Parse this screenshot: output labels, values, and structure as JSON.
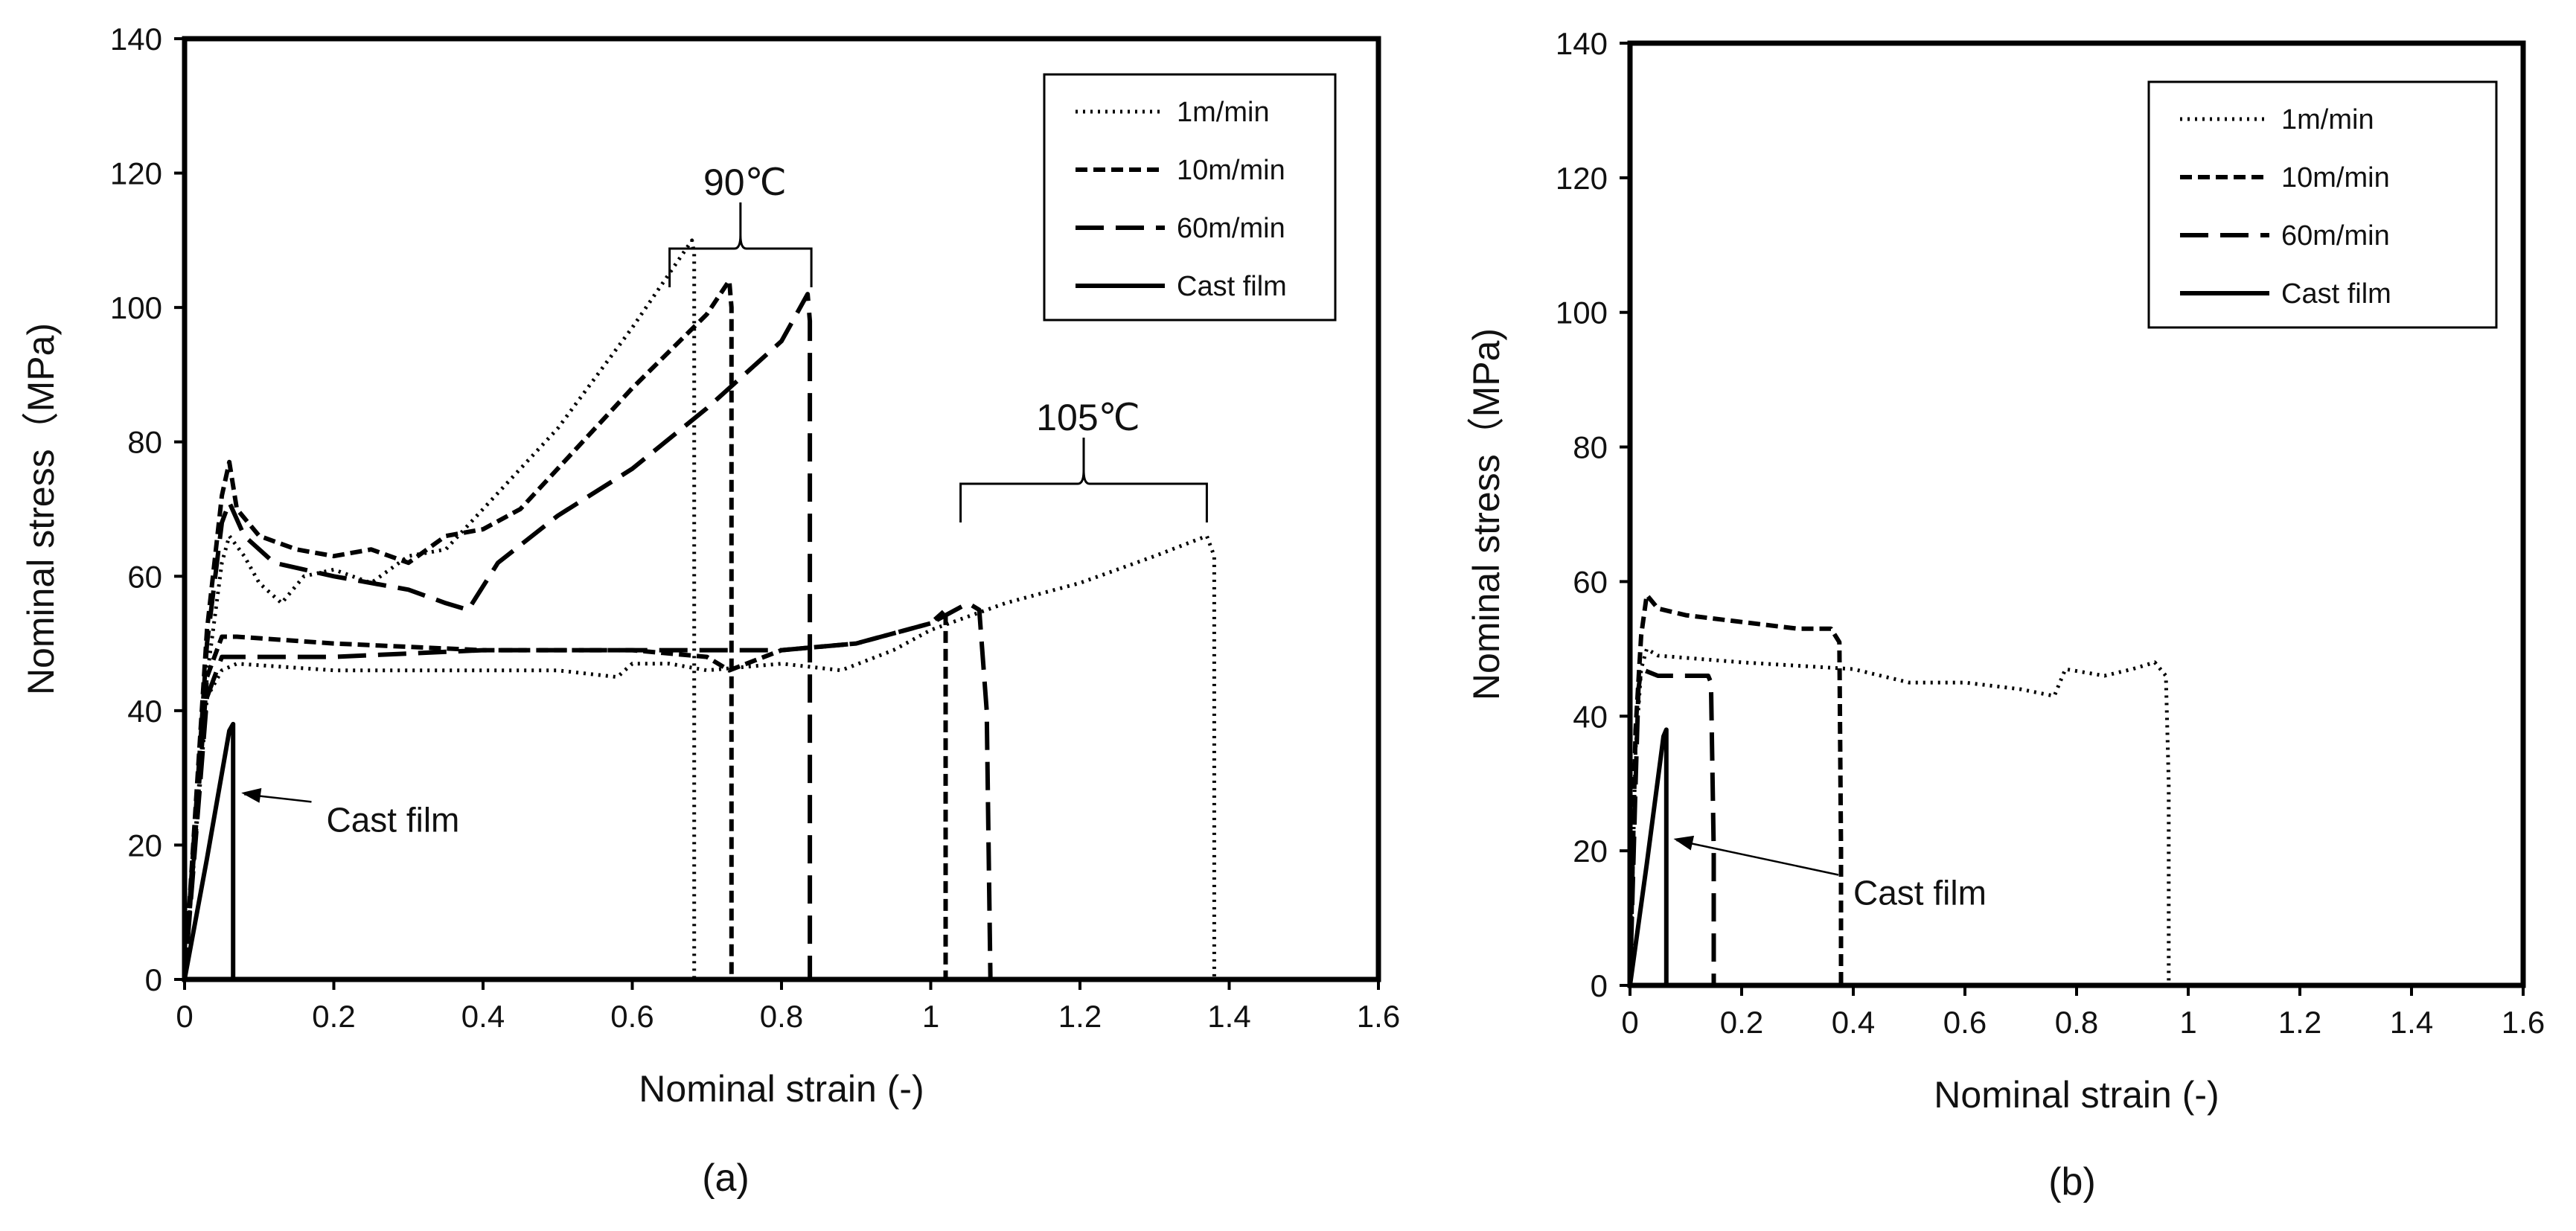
{
  "figure": {
    "panel_a_label": "(a)",
    "panel_b_label": "(b)"
  },
  "chart_data": [
    {
      "type": "line",
      "panel": "(a)",
      "xlabel": "Nominal strain (-)",
      "ylabel": "Nominal stress（MPa)",
      "xlim": [
        0,
        1.6
      ],
      "ylim": [
        0,
        140
      ],
      "xticks": [
        "0",
        "0.2",
        "0.4",
        "0.6",
        "0.8",
        "1",
        "1.2",
        "1.4",
        "1.6"
      ],
      "yticks": [
        "0",
        "20",
        "40",
        "60",
        "80",
        "100",
        "120",
        "140"
      ],
      "legend": {
        "placement": "top-right",
        "entries": [
          {
            "label": "1m/min",
            "style": "dotted"
          },
          {
            "label": "10m/min",
            "style": "short-dash"
          },
          {
            "label": "60m/min",
            "style": "long-dash"
          },
          {
            "label": "Cast film",
            "style": "solid"
          }
        ]
      },
      "annotations": [
        {
          "text": "90℃",
          "bracket_x": [
            0.65,
            0.84
          ],
          "bracket_y": 103
        },
        {
          "text": "105℃",
          "bracket_x": [
            1.04,
            1.37
          ],
          "bracket_y": 68
        },
        {
          "text": "Cast film",
          "arrow_to": [
            0.07,
            28
          ],
          "text_at": [
            0.19,
            22
          ]
        }
      ],
      "series": [
        {
          "name": "1m/min 90℃",
          "style": "dotted",
          "x": [
            0,
            0.03,
            0.05,
            0.06,
            0.08,
            0.1,
            0.13,
            0.16,
            0.2,
            0.25,
            0.3,
            0.35,
            0.4,
            0.5,
            0.6,
            0.68,
            0.683,
            0.683
          ],
          "y": [
            0,
            45,
            62,
            66,
            63,
            59,
            56,
            60,
            61,
            59,
            63,
            64,
            70,
            82,
            97,
            110,
            108,
            0
          ]
        },
        {
          "name": "10m/min 90℃",
          "style": "short-dash",
          "x": [
            0,
            0.03,
            0.05,
            0.06,
            0.07,
            0.1,
            0.15,
            0.2,
            0.25,
            0.3,
            0.35,
            0.4,
            0.45,
            0.5,
            0.6,
            0.7,
            0.73,
            0.733,
            0.733
          ],
          "y": [
            0,
            52,
            72,
            77,
            70,
            66,
            64,
            63,
            64,
            62,
            66,
            67,
            70,
            76,
            88,
            99,
            104,
            100,
            0
          ]
        },
        {
          "name": "60m/min 90℃",
          "style": "long-dash",
          "x": [
            0,
            0.03,
            0.05,
            0.06,
            0.08,
            0.12,
            0.2,
            0.3,
            0.35,
            0.38,
            0.42,
            0.5,
            0.6,
            0.7,
            0.8,
            0.835,
            0.838,
            0.838
          ],
          "y": [
            0,
            50,
            68,
            71,
            66,
            62,
            60,
            58,
            56,
            55,
            62,
            69,
            76,
            85,
            95,
            102,
            98,
            0
          ]
        },
        {
          "name": "1m/min 105℃",
          "style": "dotted",
          "x": [
            0,
            0.03,
            0.05,
            0.07,
            0.2,
            0.3,
            0.4,
            0.5,
            0.58,
            0.6,
            0.65,
            0.7,
            0.8,
            0.88,
            0.95,
            1.0,
            1.1,
            1.2,
            1.3,
            1.37,
            1.38,
            1.38
          ],
          "y": [
            0,
            42,
            46,
            47,
            46,
            46,
            46,
            46,
            45,
            47,
            47,
            46,
            47,
            46,
            49,
            52,
            56,
            59,
            63,
            66,
            63,
            0
          ]
        },
        {
          "name": "10m/min 105℃",
          "style": "short-dash",
          "x": [
            0,
            0.03,
            0.05,
            0.07,
            0.2,
            0.4,
            0.6,
            0.7,
            0.73,
            0.8,
            0.9,
            1.0,
            1.02,
            1.02
          ],
          "y": [
            0,
            45,
            51,
            51,
            50,
            49,
            49,
            48,
            46,
            49,
            50,
            53,
            55,
            0
          ]
        },
        {
          "name": "60m/min 105℃",
          "style": "long-dash",
          "x": [
            0,
            0.03,
            0.05,
            0.07,
            0.2,
            0.4,
            0.6,
            0.8,
            0.9,
            1.0,
            1.05,
            1.065,
            1.075,
            1.08
          ],
          "y": [
            0,
            42,
            48,
            48,
            48,
            49,
            49,
            49,
            50,
            53,
            56,
            55,
            40,
            0
          ]
        },
        {
          "name": "Cast film",
          "style": "solid",
          "x": [
            0,
            0.03,
            0.06,
            0.065,
            0.065
          ],
          "y": [
            0,
            18,
            37,
            38,
            0
          ]
        }
      ]
    },
    {
      "type": "line",
      "panel": "(b)",
      "xlabel": "Nominal strain (-)",
      "ylabel": "Nominal stress（MPa)",
      "xlim": [
        0,
        1.6
      ],
      "ylim": [
        0,
        140
      ],
      "xticks": [
        "0",
        "0.2",
        "0.4",
        "0.6",
        "0.8",
        "1",
        "1.2",
        "1.4",
        "1.6"
      ],
      "yticks": [
        "0",
        "20",
        "40",
        "60",
        "80",
        "100",
        "120",
        "140"
      ],
      "legend": {
        "placement": "top-right",
        "entries": [
          {
            "label": "1m/min",
            "style": "dotted"
          },
          {
            "label": "10m/min",
            "style": "short-dash"
          },
          {
            "label": "60m/min",
            "style": "long-dash"
          },
          {
            "label": "Cast film",
            "style": "solid"
          }
        ]
      },
      "annotations": [
        {
          "text": "Cast film",
          "arrow_to": [
            0.07,
            22
          ],
          "text_at": [
            0.4,
            12
          ]
        }
      ],
      "series": [
        {
          "name": "1m/min",
          "style": "dotted",
          "x": [
            0,
            0.01,
            0.02,
            0.03,
            0.05,
            0.2,
            0.4,
            0.5,
            0.6,
            0.7,
            0.76,
            0.78,
            0.85,
            0.9,
            0.94,
            0.96,
            0.965,
            0.965
          ],
          "y": [
            0,
            35,
            47,
            50,
            49,
            48,
            47,
            45,
            45,
            44,
            43,
            47,
            46,
            47,
            48,
            46,
            30,
            0
          ]
        },
        {
          "name": "10m/min",
          "style": "short-dash",
          "x": [
            0,
            0.01,
            0.02,
            0.03,
            0.05,
            0.1,
            0.2,
            0.3,
            0.36,
            0.375,
            0.378,
            0.378
          ],
          "y": [
            0,
            38,
            52,
            58,
            56,
            55,
            54,
            53,
            53,
            51,
            20,
            0
          ]
        },
        {
          "name": "60m/min",
          "style": "long-dash",
          "x": [
            0,
            0.01,
            0.015,
            0.02,
            0.05,
            0.1,
            0.14,
            0.145,
            0.15,
            0.15
          ],
          "y": [
            0,
            30,
            44,
            47,
            46,
            46,
            46,
            45,
            20,
            0
          ]
        },
        {
          "name": "Cast film",
          "style": "solid",
          "x": [
            0,
            0.03,
            0.06,
            0.065,
            0.065
          ],
          "y": [
            0,
            18,
            37,
            38,
            0
          ]
        }
      ]
    }
  ]
}
